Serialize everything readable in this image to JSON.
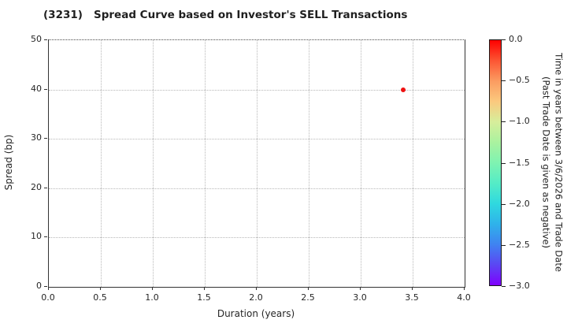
{
  "chart_data": {
    "type": "scatter",
    "title": "(3231)   Spread Curve based on Investor's SELL Transactions",
    "xlabel": "Duration (years)",
    "ylabel": "Spread (bp)",
    "xlim": [
      0.0,
      4.0
    ],
    "ylim": [
      0,
      50
    ],
    "xtick_labels": [
      "0.0",
      "0.5",
      "1.0",
      "1.5",
      "2.0",
      "2.5",
      "3.0",
      "3.5",
      "4.0"
    ],
    "ytick_labels": [
      "0",
      "10",
      "20",
      "30",
      "40",
      "50"
    ],
    "grid": true,
    "points": [
      {
        "x": 3.41,
        "y": 40,
        "value": 0.0,
        "color": "#ee1111"
      }
    ],
    "colorbar": {
      "label_line1": "Time in years between 3/6/2026 and Trade Date",
      "label_line2": "(Past Trade Date is given as negative)",
      "tick_labels": [
        "0.0",
        "−0.5",
        "−1.0",
        "−1.5",
        "−2.0",
        "−2.5",
        "−3.0"
      ],
      "range_top": 0.0,
      "range_bottom": -3.0,
      "colormap": "rainbow",
      "gradient": [
        {
          "pos": 0,
          "color": "#fe0000"
        },
        {
          "pos": 8.3,
          "color": "#fc5533"
        },
        {
          "pos": 16.7,
          "color": "#fb9c61"
        },
        {
          "pos": 25,
          "color": "#fbc97e"
        },
        {
          "pos": 33.3,
          "color": "#d7ee9b"
        },
        {
          "pos": 41.7,
          "color": "#aaf29f"
        },
        {
          "pos": 50,
          "color": "#7ff3b1"
        },
        {
          "pos": 58.3,
          "color": "#55ecc6"
        },
        {
          "pos": 66.7,
          "color": "#2fd9df"
        },
        {
          "pos": 75,
          "color": "#2fb2ea"
        },
        {
          "pos": 83.3,
          "color": "#3f83f1"
        },
        {
          "pos": 91.7,
          "color": "#5b46f3"
        },
        {
          "pos": 100,
          "color": "#7f00fe"
        }
      ]
    }
  }
}
